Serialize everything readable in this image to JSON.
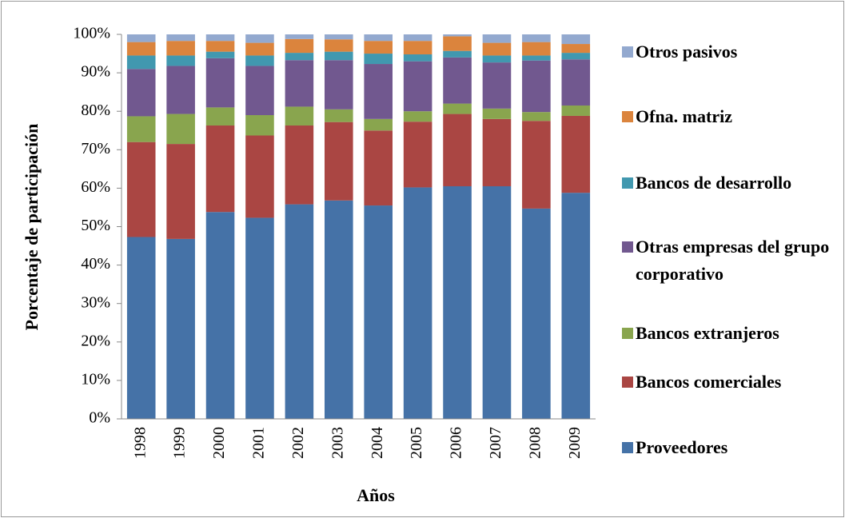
{
  "chart_data": {
    "type": "stacked_bar",
    "x_label": "Años",
    "y_label": "Porcentaje de participación",
    "categories": [
      "1998",
      "1999",
      "2000",
      "2001",
      "2002",
      "2003",
      "2004",
      "2005",
      "2006",
      "2007",
      "2008",
      "2009"
    ],
    "series": [
      {
        "name": "Proveedores",
        "color": "#4572a7",
        "values": [
          47.3,
          46.8,
          53.8,
          52.3,
          55.8,
          56.8,
          55.5,
          60.2,
          60.5,
          60.5,
          54.7,
          58.8
        ]
      },
      {
        "name": "Bancos comerciales",
        "color": "#aa4643",
        "values": [
          24.7,
          24.7,
          22.5,
          21.4,
          20.5,
          20.4,
          19.5,
          17.1,
          18.8,
          17.5,
          22.8,
          20.0
        ]
      },
      {
        "name": "Bancos extranjeros",
        "color": "#89a54e",
        "values": [
          6.7,
          7.8,
          4.7,
          5.3,
          4.9,
          3.3,
          3.0,
          2.7,
          2.7,
          2.7,
          2.3,
          2.7
        ]
      },
      {
        "name": "Otras empresas del grupo corporativo",
        "color": "#71588f",
        "values": [
          12.3,
          12.5,
          12.8,
          12.8,
          12.1,
          12.8,
          14.3,
          13.0,
          12.0,
          12.0,
          13.4,
          12.0
        ]
      },
      {
        "name": "Bancos de desarrollo",
        "color": "#4198af",
        "values": [
          3.5,
          2.7,
          1.7,
          2.7,
          1.9,
          2.2,
          2.7,
          1.8,
          1.7,
          1.8,
          1.3,
          1.7
        ]
      },
      {
        "name": "Ofna. matriz",
        "color": "#db843d",
        "values": [
          3.5,
          3.8,
          2.8,
          3.3,
          3.6,
          3.2,
          3.3,
          3.5,
          3.8,
          3.3,
          3.5,
          2.3
        ]
      },
      {
        "name": "Otros pasivos",
        "color": "#93a9cf",
        "values": [
          2.0,
          1.7,
          1.7,
          2.2,
          1.2,
          1.3,
          1.7,
          1.7,
          0.5,
          2.2,
          2.0,
          2.5
        ]
      }
    ],
    "ylim": [
      0,
      100
    ],
    "yticks": [
      {
        "value": 0,
        "label": "0%"
      },
      {
        "value": 10,
        "label": "10%"
      },
      {
        "value": 20,
        "label": "20%"
      },
      {
        "value": 30,
        "label": "30%"
      },
      {
        "value": 40,
        "label": "40%"
      },
      {
        "value": 50,
        "label": "50%"
      },
      {
        "value": 60,
        "label": "60%"
      },
      {
        "value": 70,
        "label": "70%"
      },
      {
        "value": 80,
        "label": "80%"
      },
      {
        "value": 90,
        "label": "90%"
      },
      {
        "value": 100,
        "label": "100%"
      }
    ],
    "grid": false,
    "legend": "right"
  }
}
